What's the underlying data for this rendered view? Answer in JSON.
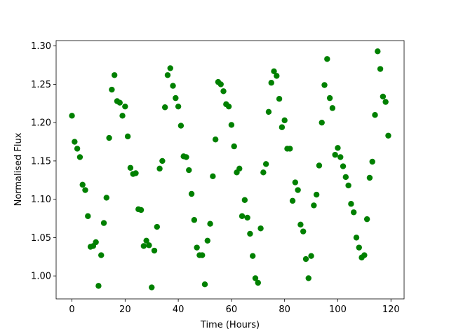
{
  "chart_data": {
    "type": "scatter",
    "x_label": "Time (Hours)",
    "y_label": "Normalised Flux",
    "color": "#008000",
    "x": [
      0,
      1,
      2,
      3,
      4,
      5,
      6,
      7,
      8,
      9,
      10,
      11,
      12,
      13,
      14,
      15,
      16,
      17,
      18,
      19,
      20,
      21,
      22,
      23,
      24,
      25,
      26,
      27,
      28,
      29,
      30,
      31,
      32,
      33,
      34,
      35,
      36,
      37,
      38,
      39,
      40,
      41,
      42,
      43,
      44,
      45,
      46,
      47,
      48,
      49,
      50,
      51,
      52,
      53,
      54,
      55,
      56,
      57,
      58,
      59,
      60,
      61,
      62,
      63,
      64,
      65,
      66,
      67,
      68,
      69,
      70,
      71,
      72,
      73,
      74,
      75,
      76,
      77,
      78,
      79,
      80,
      81,
      82,
      83,
      84,
      85,
      86,
      87,
      88,
      89,
      90,
      91,
      92,
      93,
      94,
      95,
      96,
      97,
      98,
      99,
      100,
      101,
      102,
      103,
      104,
      105,
      106,
      107,
      108,
      109,
      110,
      111,
      112,
      113,
      114,
      115,
      116,
      117,
      118,
      119
    ],
    "values": [
      1.209,
      1.175,
      1.166,
      1.155,
      1.119,
      1.112,
      1.078,
      1.038,
      1.039,
      1.044,
      0.987,
      1.027,
      1.069,
      1.102,
      1.18,
      1.243,
      1.262,
      1.228,
      1.226,
      1.209,
      1.221,
      1.182,
      1.141,
      1.133,
      1.134,
      1.087,
      1.086,
      1.039,
      1.046,
      1.04,
      0.985,
      1.033,
      1.064,
      1.14,
      1.15,
      1.22,
      1.262,
      1.271,
      1.248,
      1.232,
      1.221,
      1.196,
      1.156,
      1.155,
      1.138,
      1.107,
      1.073,
      1.037,
      1.027,
      1.027,
      0.989,
      1.046,
      1.068,
      1.13,
      1.178,
      1.253,
      1.25,
      1.241,
      1.224,
      1.221,
      1.197,
      1.169,
      1.135,
      1.14,
      1.078,
      1.099,
      1.076,
      1.055,
      1.026,
      0.997,
      0.991,
      1.062,
      1.135,
      1.146,
      1.214,
      1.252,
      1.267,
      1.261,
      1.231,
      1.194,
      1.203,
      1.166,
      1.166,
      1.098,
      1.122,
      1.112,
      1.067,
      1.058,
      1.022,
      0.997,
      1.026,
      1.092,
      1.106,
      1.144,
      1.2,
      1.249,
      1.283,
      1.232,
      1.219,
      1.158,
      1.167,
      1.155,
      1.143,
      1.129,
      1.118,
      1.094,
      1.083,
      1.05,
      1.037,
      1.024,
      1.027,
      1.074,
      1.128,
      1.149,
      1.21,
      1.293,
      1.27,
      1.234,
      1.227,
      1.183
    ],
    "xlim": [
      -5.95,
      124.95
    ],
    "ylim": [
      0.97,
      1.307
    ],
    "xticks": [
      0,
      20,
      40,
      60,
      80,
      100,
      120
    ],
    "yticks": [
      {
        "value": 1.0,
        "label": "1.00"
      },
      1.05,
      {
        "value": 1.1,
        "label": "1.10"
      },
      1.15,
      {
        "value": 1.2,
        "label": "1.20"
      },
      1.25,
      {
        "value": 1.3,
        "label": "1.30"
      }
    ]
  }
}
